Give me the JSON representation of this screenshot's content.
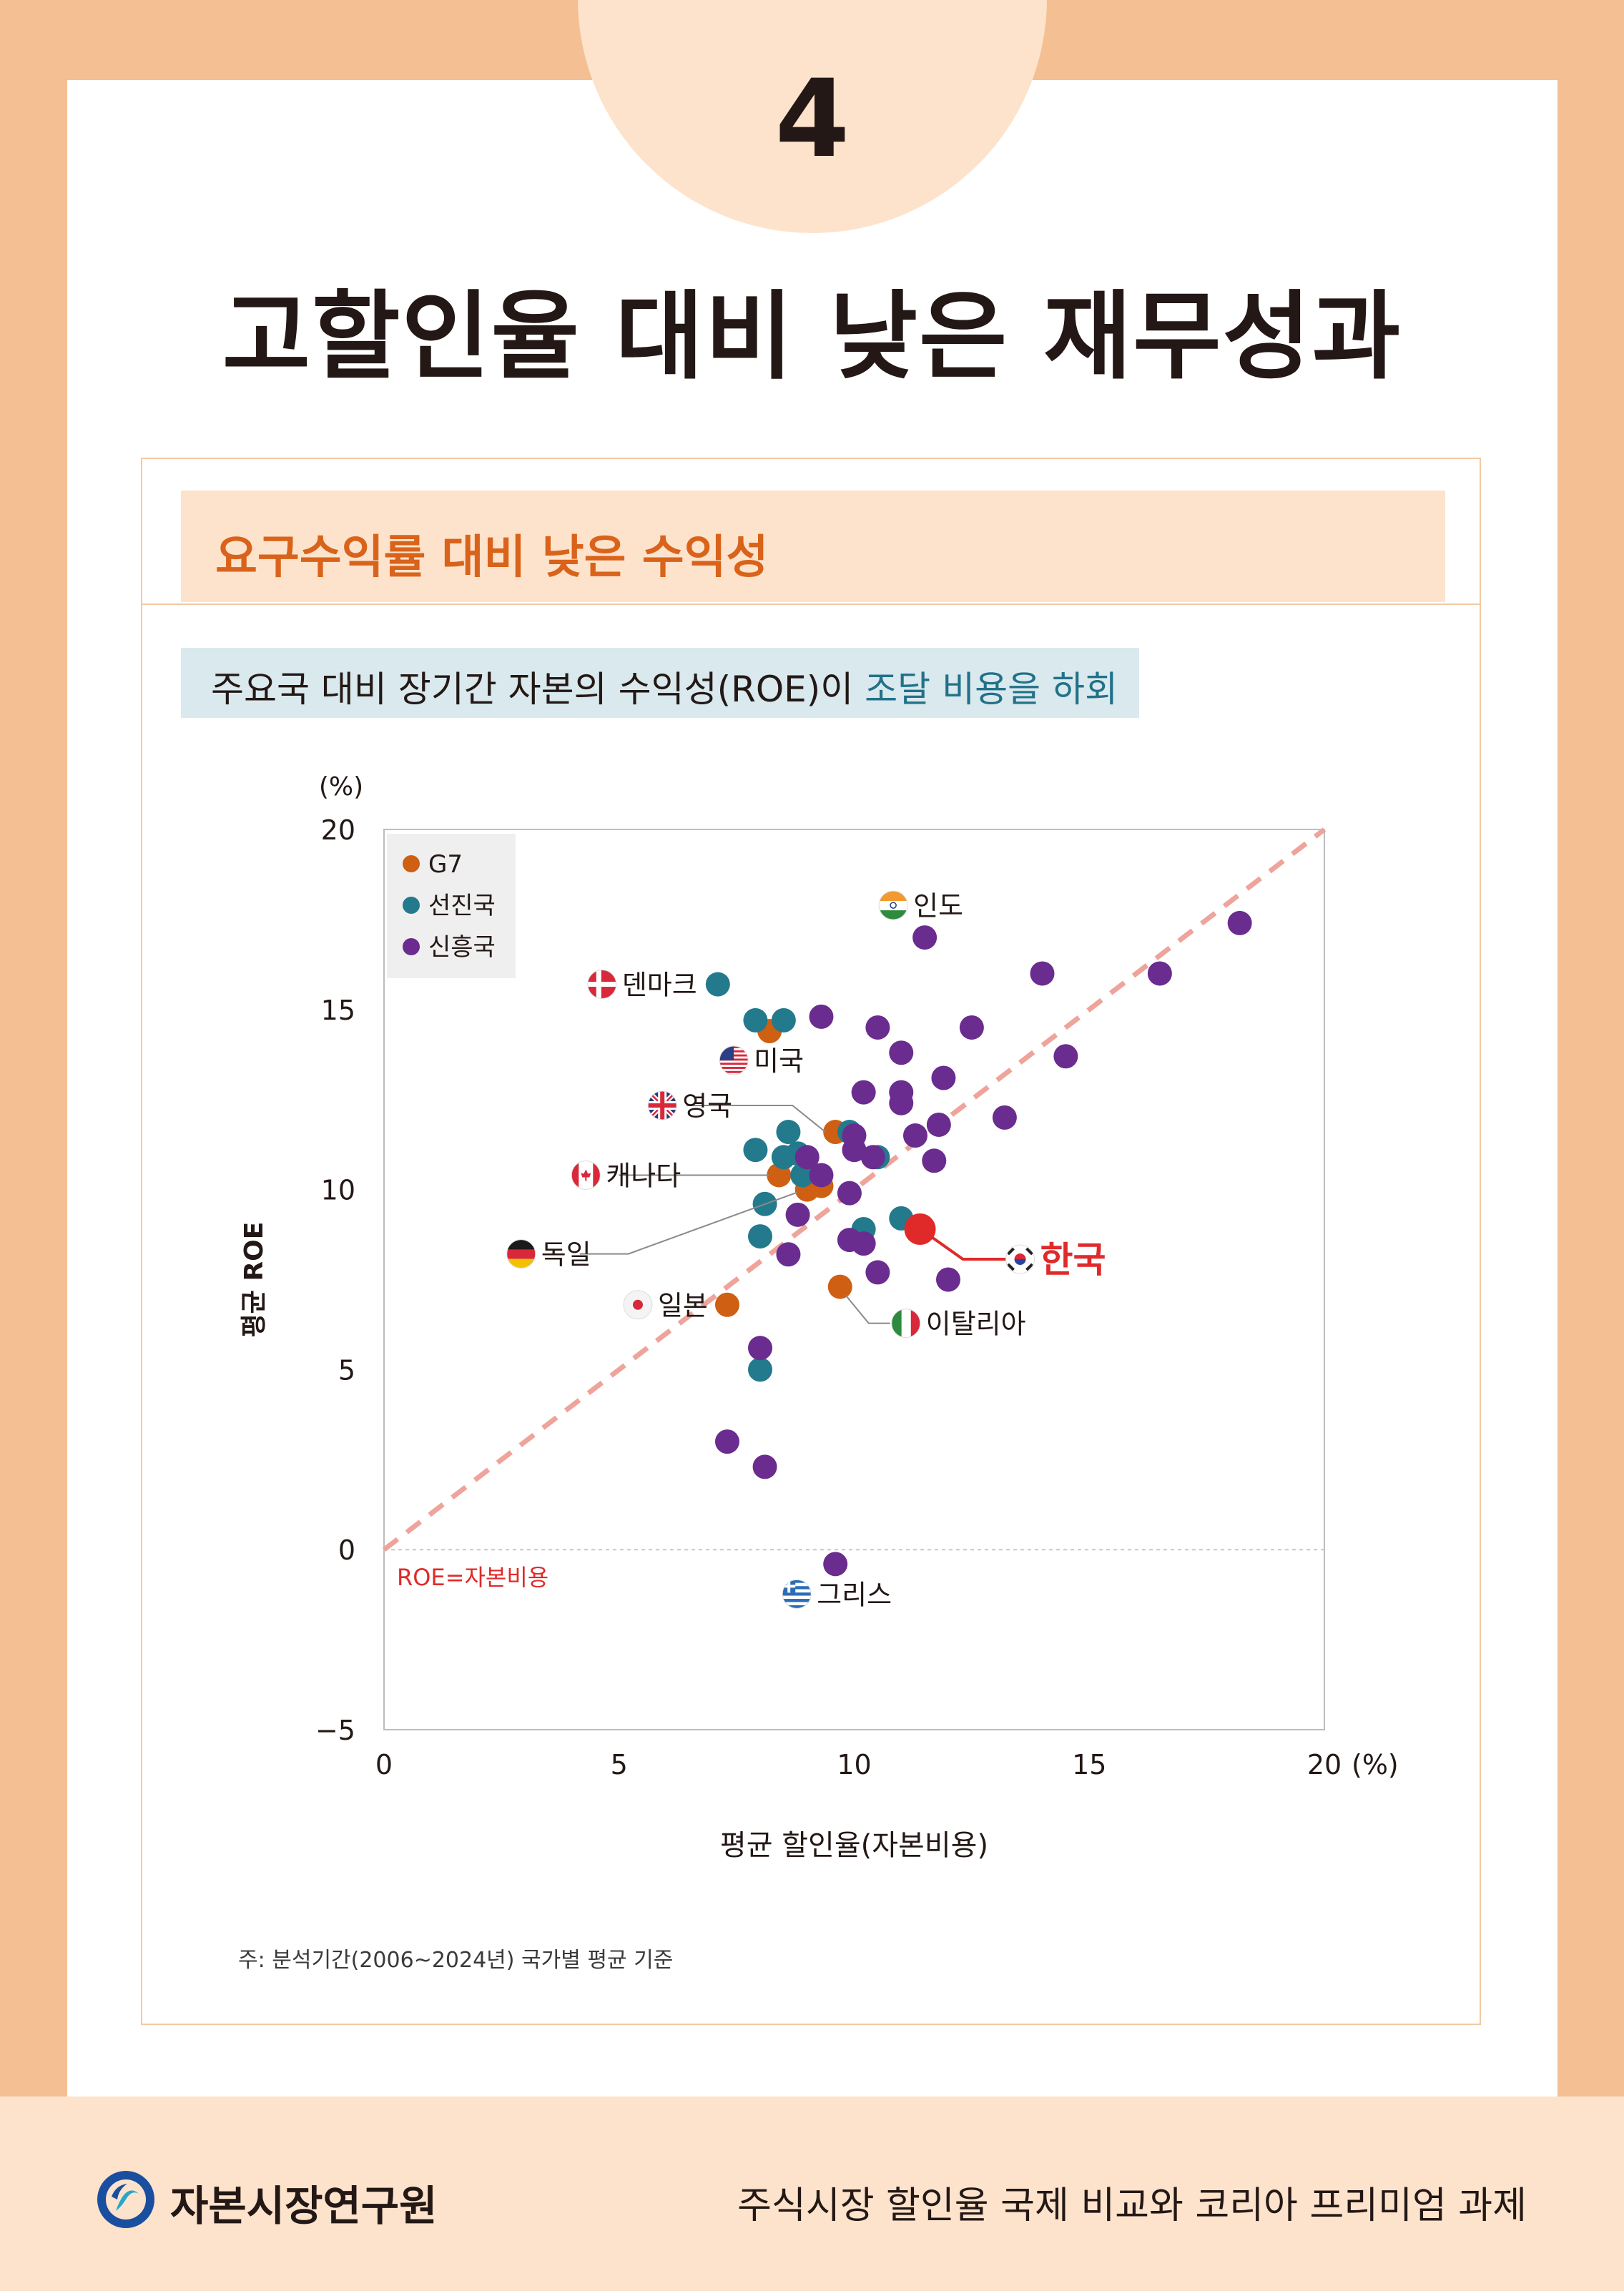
{
  "page": {
    "number": "4",
    "title": "고할인율 대비 낮은 재무성과"
  },
  "card": {
    "header": "요구수익률 대비 낮은 수익성",
    "subtitle_main": "주요국 대비 장기간 자본의 수익성(ROE)이 ",
    "subtitle_highlight": "조달 비용을 하회",
    "footnote": "주: 분석기간(2006~2024년) 국가별 평균 기준"
  },
  "footer": {
    "org_name": "자본시장연구원",
    "report_title": "주식시장 할인율 국제 비교와 코리아 프리미엄 과제"
  },
  "colors": {
    "g7": "#cf5f12",
    "advanced": "#237a8c",
    "emerging": "#6a2c8e",
    "korea": "#e02a2a",
    "diagonal": "#eea49b",
    "accent_orange": "#d9631b",
    "accent_teal": "#227189"
  },
  "chart_data": {
    "type": "scatter",
    "xlabel": "평균 할인율(자본비용)",
    "ylabel": "평균 ROE",
    "x_unit": "(%)",
    "y_unit": "(%)",
    "xlim": [
      0,
      20
    ],
    "ylim": [
      -5,
      20
    ],
    "x_ticks": [
      "0",
      "5",
      "10",
      "15",
      "20"
    ],
    "y_ticks": [
      "20",
      "15",
      "10",
      "5",
      "0",
      "−5"
    ],
    "legend": [
      {
        "key": "g7",
        "label": "G7"
      },
      {
        "key": "advanced",
        "label": "선진국"
      },
      {
        "key": "emerging",
        "label": "신흥국"
      }
    ],
    "legend_position": "top-left",
    "diagonal_label": "ROE=자본비용",
    "series": [
      {
        "key": "g7",
        "name": "G7",
        "points": [
          [
            8.2,
            14.4
          ],
          [
            9.6,
            11.6
          ],
          [
            8.4,
            10.4
          ],
          [
            9.0,
            10.0
          ],
          [
            9.3,
            10.1
          ],
          [
            7.3,
            6.8
          ],
          [
            9.7,
            7.3
          ]
        ]
      },
      {
        "key": "advanced",
        "name": "선진국",
        "points": [
          [
            7.1,
            15.7
          ],
          [
            7.9,
            14.7
          ],
          [
            8.5,
            14.7
          ],
          [
            8.6,
            11.6
          ],
          [
            7.9,
            11.1
          ],
          [
            8.5,
            10.9
          ],
          [
            8.9,
            10.4
          ],
          [
            8.8,
            11.0
          ],
          [
            8.1,
            9.6
          ],
          [
            8.0,
            8.7
          ],
          [
            9.9,
            11.6
          ],
          [
            10.5,
            10.9
          ],
          [
            10.2,
            8.9
          ],
          [
            11.0,
            9.2
          ],
          [
            8.0,
            5.0
          ]
        ]
      },
      {
        "key": "emerging",
        "name": "신흥국",
        "points": [
          [
            18.2,
            17.4
          ],
          [
            14.0,
            16.0
          ],
          [
            16.5,
            16.0
          ],
          [
            11.5,
            17.0
          ],
          [
            9.3,
            14.8
          ],
          [
            10.5,
            14.5
          ],
          [
            12.5,
            14.5
          ],
          [
            14.5,
            13.7
          ],
          [
            11.0,
            13.8
          ],
          [
            11.9,
            13.1
          ],
          [
            10.2,
            12.7
          ],
          [
            11.0,
            12.7
          ],
          [
            11.0,
            12.4
          ],
          [
            13.2,
            12.0
          ],
          [
            10.0,
            11.5
          ],
          [
            11.3,
            11.5
          ],
          [
            11.8,
            11.8
          ],
          [
            10.0,
            11.1
          ],
          [
            10.4,
            10.9
          ],
          [
            11.7,
            10.8
          ],
          [
            9.0,
            10.9
          ],
          [
            9.3,
            10.4
          ],
          [
            9.9,
            9.9
          ],
          [
            8.8,
            9.3
          ],
          [
            8.6,
            8.2
          ],
          [
            9.9,
            8.6
          ],
          [
            10.2,
            8.5
          ],
          [
            10.5,
            7.7
          ],
          [
            12.0,
            7.5
          ],
          [
            8.0,
            5.6
          ],
          [
            7.3,
            3.0
          ],
          [
            8.1,
            2.3
          ],
          [
            9.6,
            -0.4
          ]
        ]
      },
      {
        "key": "korea",
        "name": "한국",
        "points": [
          [
            11.4,
            8.9
          ]
        ]
      }
    ],
    "annotations": [
      {
        "label": "인도",
        "flag": "india",
        "point": [
          11.5,
          17.0
        ]
      },
      {
        "label": "덴마크",
        "flag": "denmark",
        "point": [
          7.1,
          15.7
        ]
      },
      {
        "label": "미국",
        "flag": "usa",
        "point": [
          8.2,
          14.4
        ]
      },
      {
        "label": "영국",
        "flag": "uk",
        "point": [
          9.6,
          11.6
        ]
      },
      {
        "label": "캐나다",
        "flag": "canada",
        "point": [
          8.4,
          10.4
        ]
      },
      {
        "label": "독일",
        "flag": "germany",
        "point": [
          9.0,
          10.0
        ]
      },
      {
        "label": "일본",
        "flag": "japan",
        "point": [
          7.3,
          6.8
        ]
      },
      {
        "label": "한국",
        "flag": "korea",
        "point": [
          11.4,
          8.9
        ]
      },
      {
        "label": "이탈리아",
        "flag": "italy",
        "point": [
          9.7,
          7.3
        ]
      },
      {
        "label": "그리스",
        "flag": "greece",
        "point": [
          9.6,
          -0.4
        ]
      }
    ]
  }
}
